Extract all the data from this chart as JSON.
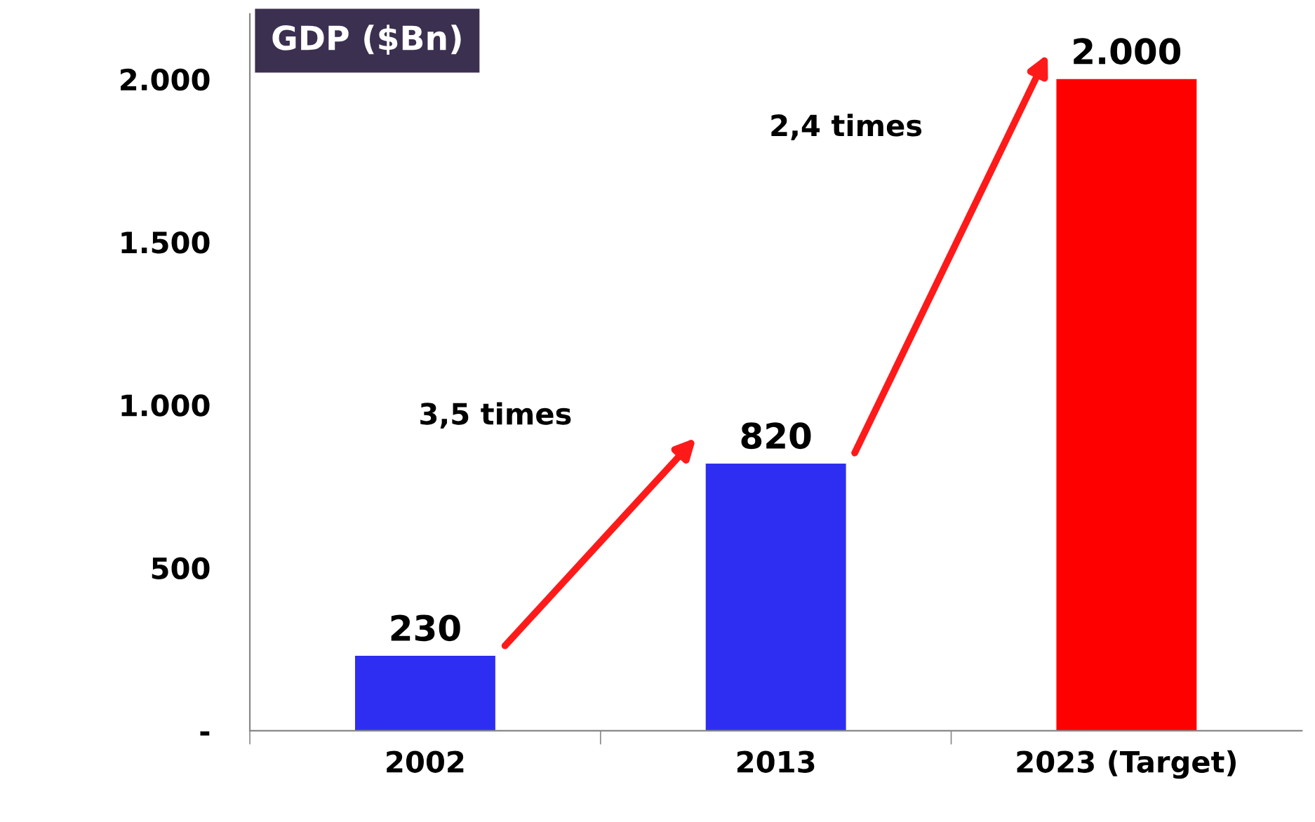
{
  "chart_data": {
    "type": "bar",
    "title": "GDP ($Bn)",
    "categories": [
      "2002",
      "2013",
      "2023 (Target)"
    ],
    "values": [
      230,
      820,
      2000
    ],
    "colors": [
      "#2e2ef2",
      "#2e2ef2",
      "#ff0000"
    ],
    "value_labels": [
      "230",
      "820",
      "2.000"
    ],
    "ylim": [
      0,
      2200
    ],
    "yticks": [
      {
        "value": 0,
        "label": "-"
      },
      500,
      {
        "value": 1000,
        "label": "1.000"
      },
      {
        "value": 1500,
        "label": "1.500"
      },
      {
        "value": 2000,
        "label": "2.000"
      }
    ],
    "annotations": [
      "3,5 times",
      "2,4 times"
    ],
    "grid": false,
    "legend": false
  }
}
